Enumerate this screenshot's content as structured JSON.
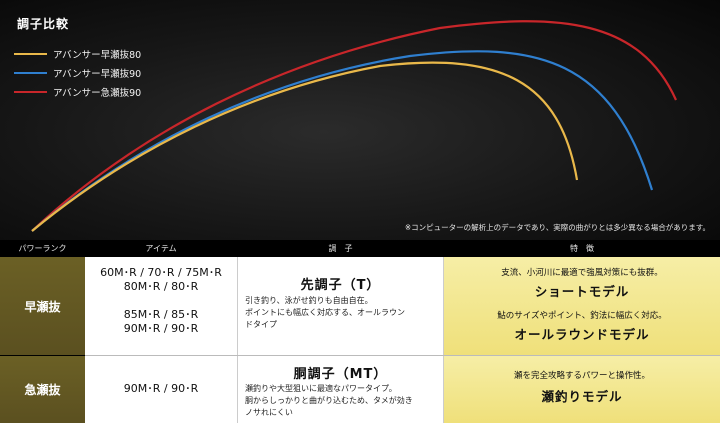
{
  "title": "調子比較",
  "legend": [
    {
      "label": "アバンサー早瀬抜80",
      "color": "#e9b84a"
    },
    {
      "label": "アバンサー早瀬抜90",
      "color": "#2f7fcf"
    },
    {
      "label": "アバンサー急瀬抜90",
      "color": "#c8262a"
    }
  ],
  "note": "※コンピューターの解析上のデータであり、実際の曲がりとは多少異なる場合があります。",
  "table": {
    "headers": {
      "rank": "パワーランク",
      "item": "アイテム",
      "action": "調　子",
      "feature": "特　徴"
    },
    "rows": [
      {
        "rank": "早瀬抜",
        "items": [
          "60M･R / 70･R / 75M･R",
          "80M･R / 80･R",
          "85M･R / 85･R",
          "90M･R / 90･R"
        ],
        "action_title": "先調子（T）",
        "action_desc": [
          "引き釣り、泳がせ釣りも自由自在。",
          "ポイントにも幅広く対応する、オールラウン",
          "ドタイプ"
        ],
        "features": [
          {
            "sub": "支流、小河川に最適で強風対策にも抜群。",
            "main": "ショートモデル"
          },
          {
            "sub": "鮎のサイズやポイント、釣法に幅広く対応。",
            "main": "オールラウンドモデル"
          }
        ]
      },
      {
        "rank": "急瀬抜",
        "items": [
          "90M･R / 90･R"
        ],
        "action_title": "胴調子（MT）",
        "action_desc": [
          "瀬釣りや大型狙いに最適なパワータイプ。",
          "胴からしっかりと曲がり込むため、タメが効き",
          "ノサれにくい"
        ],
        "features": [
          {
            "sub": "瀬を完全攻略するパワーと操作性。",
            "main": "瀬釣りモデル"
          }
        ]
      }
    ]
  }
}
